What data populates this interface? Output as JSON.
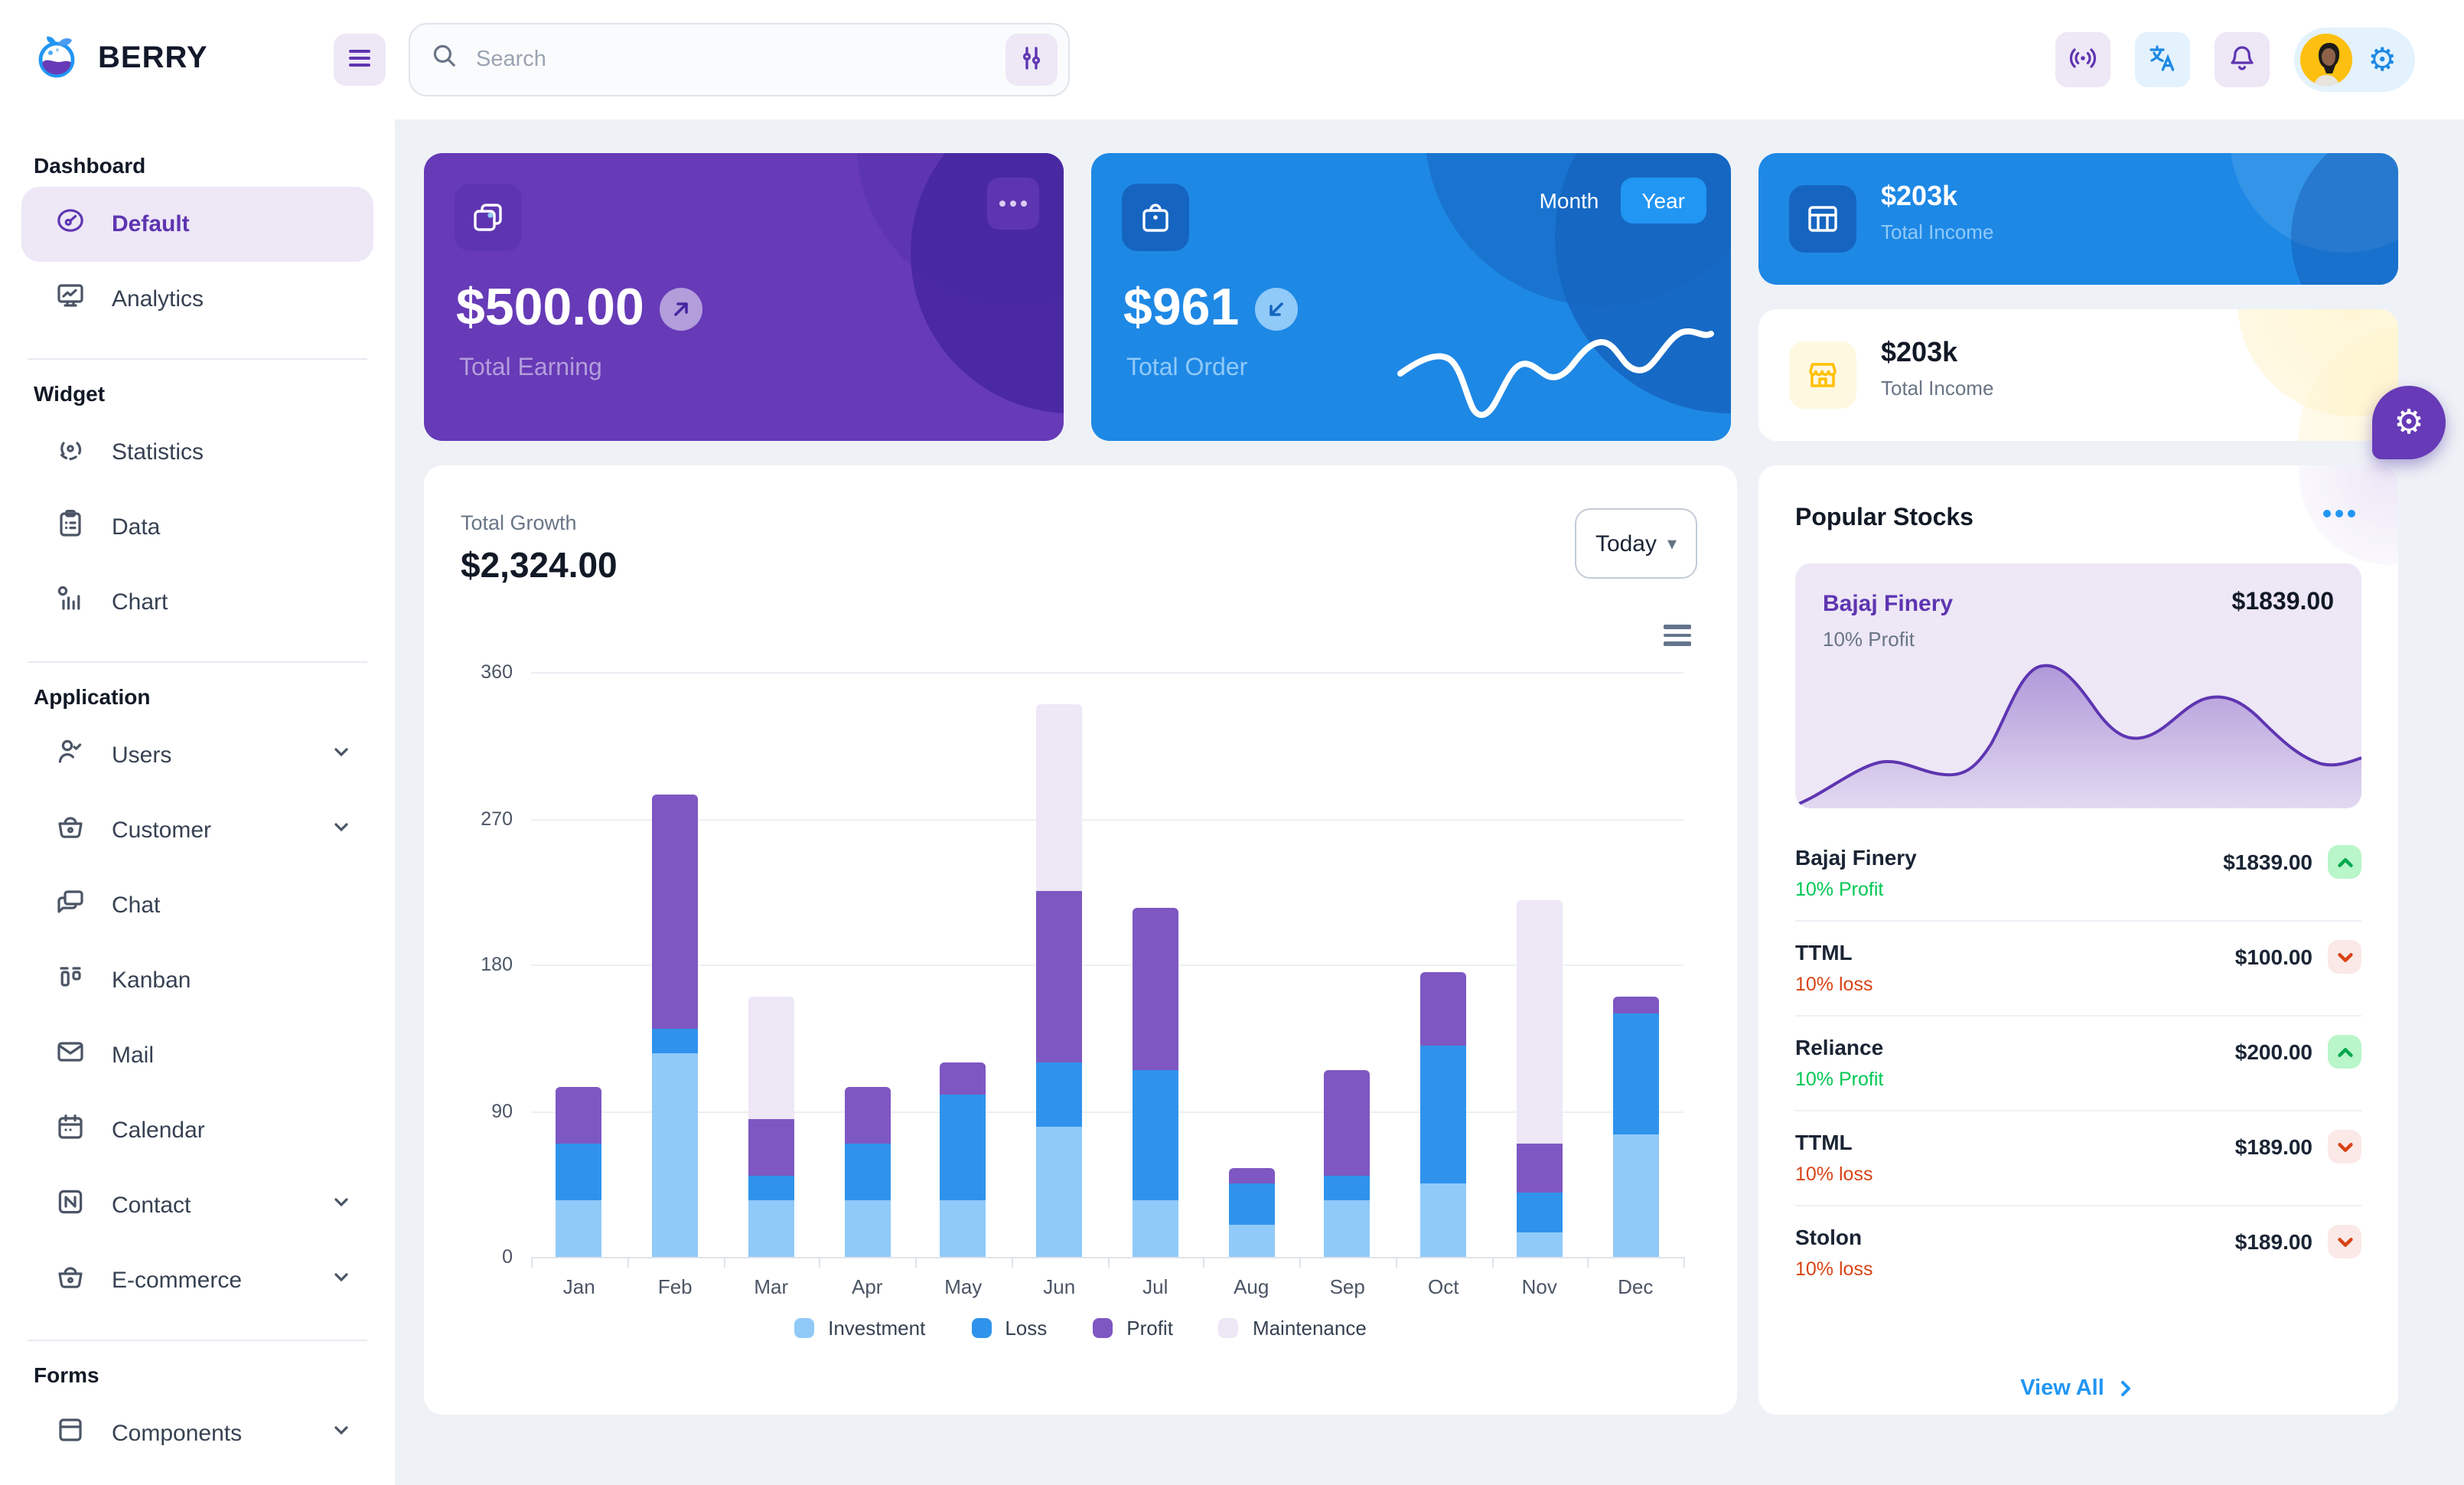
{
  "header": {
    "brand": "BERRY",
    "search": {
      "placeholder": "Search"
    }
  },
  "sidebar": {
    "sections": [
      {
        "heading": "Dashboard",
        "items": [
          {
            "label": "Default"
          },
          {
            "label": "Analytics"
          }
        ]
      },
      {
        "heading": "Widget",
        "items": [
          {
            "label": "Statistics"
          },
          {
            "label": "Data"
          },
          {
            "label": "Chart"
          }
        ]
      },
      {
        "heading": "Application",
        "items": [
          {
            "label": "Users"
          },
          {
            "label": "Customer"
          },
          {
            "label": "Chat"
          },
          {
            "label": "Kanban"
          },
          {
            "label": "Mail"
          },
          {
            "label": "Calendar"
          },
          {
            "label": "Contact"
          },
          {
            "label": "E-commerce"
          }
        ]
      },
      {
        "heading": "Forms",
        "items": [
          {
            "label": "Components"
          }
        ]
      }
    ]
  },
  "cards": {
    "earning": {
      "value": "$500.00",
      "label": "Total Earning"
    },
    "order": {
      "value": "$961",
      "label": "Total Order",
      "toggle_month": "Month",
      "toggle_year": "Year"
    },
    "income_dark": {
      "value": "$203k",
      "label": "Total Income"
    },
    "income_light": {
      "value": "$203k",
      "label": "Total Income"
    }
  },
  "growth": {
    "label": "Total Growth",
    "value": "$2,324.00",
    "range": "Today"
  },
  "chart_data": {
    "type": "bar",
    "stacked": true,
    "title": "Total Growth",
    "categories": [
      "Jan",
      "Feb",
      "Mar",
      "Apr",
      "May",
      "Jun",
      "Jul",
      "Aug",
      "Sep",
      "Oct",
      "Nov",
      "Dec"
    ],
    "series": [
      {
        "name": "Investment",
        "color": "#90caf9",
        "values": [
          35,
          125,
          35,
          35,
          35,
          80,
          35,
          20,
          35,
          45,
          15,
          75
        ]
      },
      {
        "name": "Loss",
        "color": "#2f93ec",
        "values": [
          35,
          15,
          15,
          35,
          65,
          40,
          80,
          25,
          15,
          85,
          25,
          75
        ]
      },
      {
        "name": "Profit",
        "color": "#7e57c2",
        "values": [
          35,
          145,
          35,
          35,
          20,
          105,
          100,
          10,
          65,
          45,
          30,
          10
        ]
      },
      {
        "name": "Maintenance",
        "color": "#ede7f6",
        "values": [
          0,
          0,
          75,
          0,
          0,
          115,
          0,
          0,
          0,
          0,
          150,
          0
        ]
      }
    ],
    "xlabel": "",
    "ylabel": "",
    "ylim": [
      0,
      360
    ],
    "yticks": [
      0,
      90,
      180,
      270,
      360
    ],
    "grid": "horizontal",
    "legend_position": "bottom"
  },
  "stocks": {
    "title": "Popular Stocks",
    "featured": {
      "name": "Bajaj Finery",
      "price": "$1839.00",
      "sub": "10% Profit"
    },
    "rows": [
      {
        "name": "Bajaj Finery",
        "price": "$1839.00",
        "sub": "10% Profit",
        "dir": "up"
      },
      {
        "name": "TTML",
        "price": "$100.00",
        "sub": "10% loss",
        "dir": "down"
      },
      {
        "name": "Reliance",
        "price": "$200.00",
        "sub": "10% Profit",
        "dir": "up"
      },
      {
        "name": "TTML",
        "price": "$189.00",
        "sub": "10% loss",
        "dir": "down"
      },
      {
        "name": "Stolon",
        "price": "$189.00",
        "sub": "10% loss",
        "dir": "down"
      }
    ],
    "view_all": "View All"
  },
  "colors": {
    "primary_blue": "#2196f3",
    "primary_blue_dark": "#1e88e5",
    "primary_blue_deep": "#1565c0",
    "secondary_purple": "#673ab7",
    "secondary_purple_dark": "#5e35b1",
    "purple_light_bg": "#ede7f6",
    "success_green": "#00c853",
    "error_orange": "#d84315",
    "warning_yellow": "#ffc107",
    "content_bg": "#eef2f6"
  }
}
